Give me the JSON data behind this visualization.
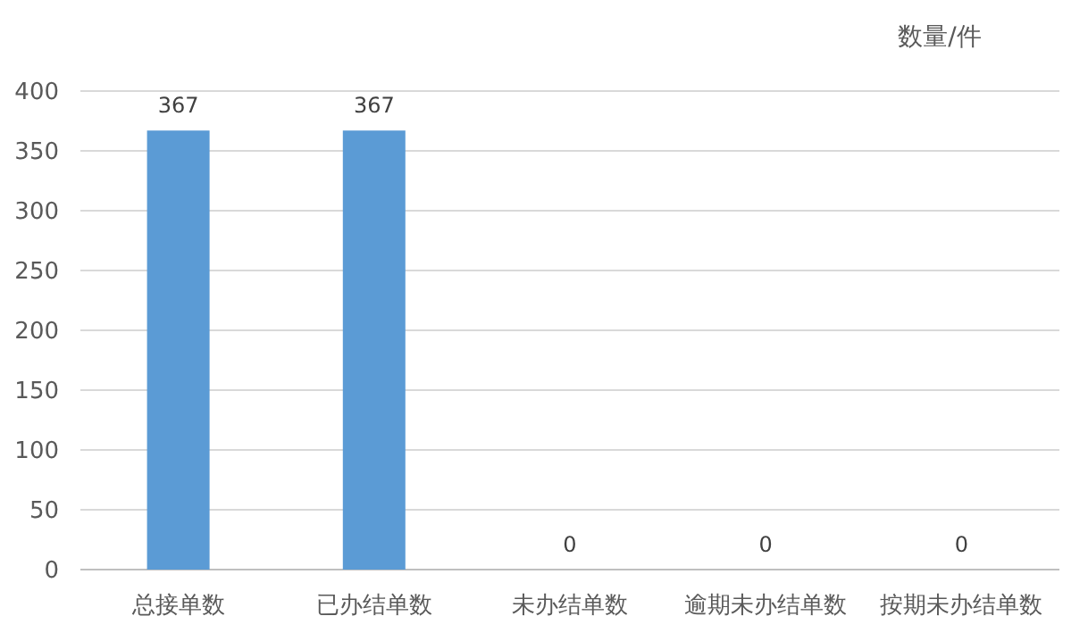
{
  "chart_data": {
    "type": "bar",
    "ylabel": "数量/件",
    "categories": [
      "总接单数",
      "已办结单数",
      "未办结单数",
      "逾期未办结单数",
      "按期未办结单数"
    ],
    "values": [
      367,
      367,
      0,
      0,
      0
    ],
    "color": "#5b9bd5",
    "ylim": [
      0,
      400
    ],
    "yticks": [
      0,
      50,
      100,
      150,
      200,
      250,
      300,
      350,
      400
    ],
    "grid": "y",
    "data_labels": true
  }
}
